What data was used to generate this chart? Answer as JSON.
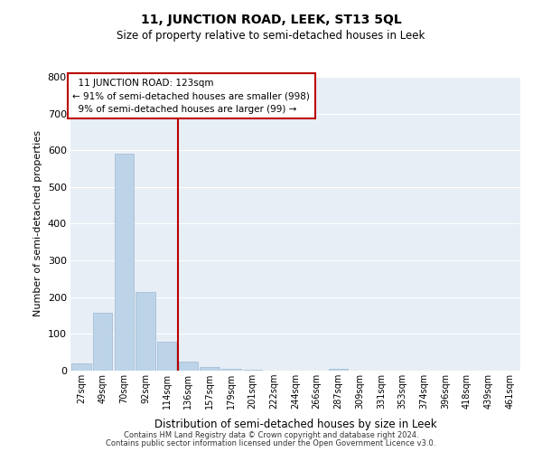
{
  "title": "11, JUNCTION ROAD, LEEK, ST13 5QL",
  "subtitle": "Size of property relative to semi-detached houses in Leek",
  "xlabel": "Distribution of semi-detached houses by size in Leek",
  "ylabel": "Number of semi-detached properties",
  "bar_labels": [
    "27sqm",
    "49sqm",
    "70sqm",
    "92sqm",
    "114sqm",
    "136sqm",
    "157sqm",
    "179sqm",
    "201sqm",
    "222sqm",
    "244sqm",
    "266sqm",
    "287sqm",
    "309sqm",
    "331sqm",
    "353sqm",
    "374sqm",
    "396sqm",
    "418sqm",
    "439sqm",
    "461sqm"
  ],
  "bar_values": [
    20,
    157,
    591,
    215,
    80,
    25,
    10,
    5,
    2,
    0,
    0,
    0,
    5,
    0,
    0,
    0,
    0,
    0,
    0,
    0,
    0
  ],
  "bar_color": "#bdd4e8",
  "bar_edge_color": "#9ab8d4",
  "property_line_x": 4.5,
  "property_size": "123sqm",
  "pct_smaller": 91,
  "n_smaller": 998,
  "pct_larger": 9,
  "n_larger": 99,
  "annotation_title": "11 JUNCTION ROAD: 123sqm",
  "ylim": [
    0,
    800
  ],
  "yticks": [
    0,
    100,
    200,
    300,
    400,
    500,
    600,
    700,
    800
  ],
  "footer1": "Contains HM Land Registry data © Crown copyright and database right 2024.",
  "footer2": "Contains public sector information licensed under the Open Government Licence v3.0.",
  "box_color": "#bb0000",
  "line_color": "#bb0000",
  "background_color": "#e8eef5"
}
